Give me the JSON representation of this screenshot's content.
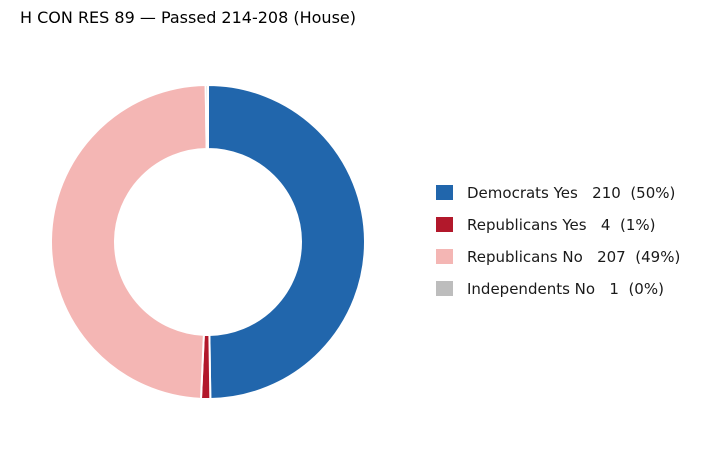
{
  "chart_data": {
    "type": "pie",
    "subtype": "donut",
    "title": "H CON RES 89 — Passed 214-208 (House)",
    "categories": [
      "Democrats Yes",
      "Republicans Yes",
      "Republicans No",
      "Independents No"
    ],
    "values": [
      210,
      4,
      207,
      1
    ],
    "percent_labels": [
      "50%",
      "1%",
      "49%",
      "0%"
    ],
    "legend_labels": [
      "Democrats Yes   210  (50%)",
      "Republicans Yes   4  (1%)",
      "Republicans No   207  (49%)",
      "Independents No   1  (0%)"
    ],
    "colors": [
      "#2166ac",
      "#b2182b",
      "#f4b6b4",
      "#bdbdbd"
    ],
    "start": "top",
    "direction": "clockwise",
    "legend_position": "right"
  }
}
